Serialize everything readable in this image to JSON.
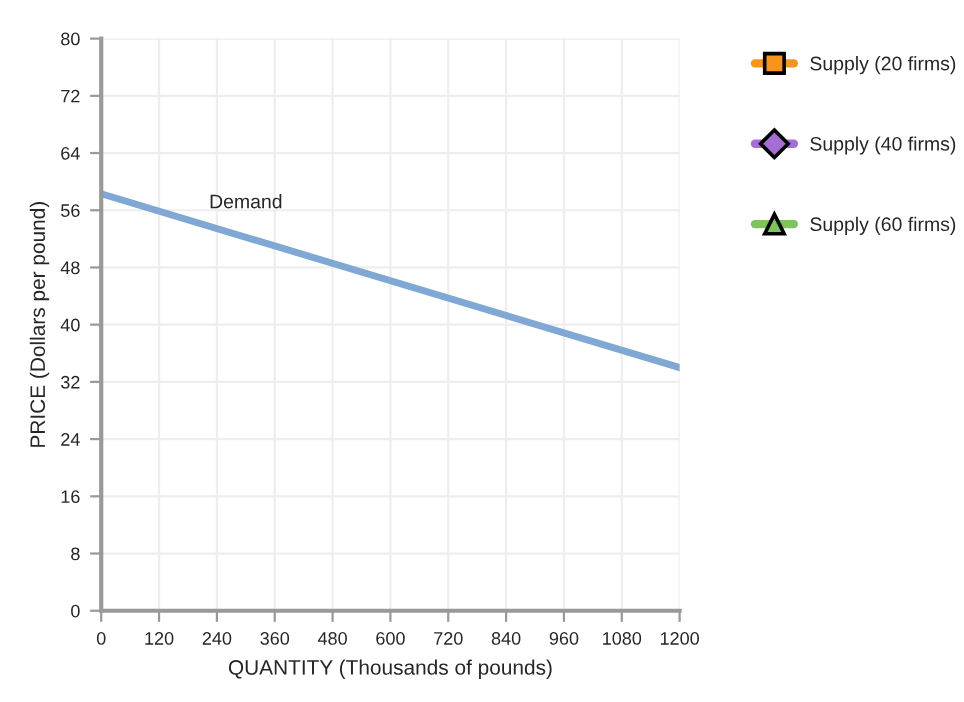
{
  "chart_data": {
    "type": "line",
    "xlabel": "QUANTITY (Thousands of pounds)",
    "ylabel": "PRICE (Dollars per pound)",
    "xlim": [
      0,
      1200
    ],
    "xticks": [
      0,
      120,
      240,
      360,
      480,
      600,
      720,
      840,
      960,
      1080,
      1200
    ],
    "ylim": [
      0,
      80
    ],
    "yticks": [
      0,
      8,
      16,
      24,
      32,
      40,
      48,
      56,
      64,
      72,
      80
    ],
    "grid": true,
    "legend": "right",
    "series": [
      {
        "name": "Demand",
        "color": "#81a8d4",
        "x": [
          0,
          1200
        ],
        "values": [
          58.3,
          34
        ],
        "marker": "none"
      },
      {
        "name": "Supply (20 firms)",
        "color": "#f7941d",
        "marker": "square"
      },
      {
        "name": "Supply (40 firms)",
        "color": "#a66dd4",
        "marker": "diamond"
      },
      {
        "name": "Supply (60 firms)",
        "color": "#7dc45c",
        "marker": "triangle"
      }
    ]
  }
}
